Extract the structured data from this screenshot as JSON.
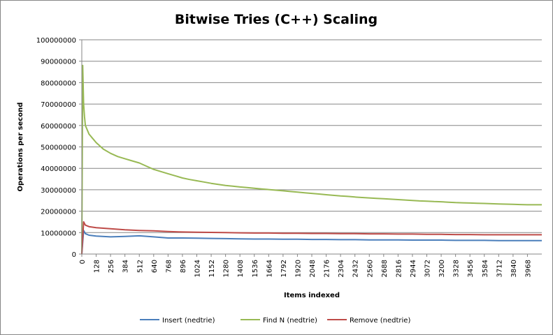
{
  "chart_data": {
    "type": "line",
    "title": "Bitwise Tries (C++) Scaling",
    "xlabel": "Items indexed",
    "ylabel": "Operations per second",
    "ylim": [
      0,
      100000000
    ],
    "yticks": [
      "0",
      "10000000",
      "20000000",
      "30000000",
      "40000000",
      "50000000",
      "60000000",
      "70000000",
      "80000000",
      "90000000",
      "100000000"
    ],
    "xlim": [
      0,
      4096
    ],
    "xticks": [
      "0",
      "128",
      "256",
      "384",
      "512",
      "640",
      "768",
      "896",
      "1024",
      "1152",
      "1280",
      "1408",
      "1536",
      "1664",
      "1792",
      "1920",
      "2048",
      "2176",
      "2304",
      "2432",
      "2560",
      "2688",
      "2816",
      "2944",
      "3072",
      "3200",
      "3328",
      "3456",
      "3584",
      "3712",
      "3840",
      "3968"
    ],
    "grid": true,
    "legend_position": "bottom",
    "series": [
      {
        "name": "Insert (nedtrie)",
        "color": "#4a7ebb",
        "x": [
          0,
          16,
          32,
          64,
          128,
          256,
          384,
          512,
          640,
          768,
          896,
          1024,
          1152,
          1280,
          1408,
          1536,
          1664,
          1792,
          1920,
          2048,
          2176,
          2304,
          2432,
          2560,
          2688,
          2816,
          2944,
          3072,
          3200,
          3328,
          3456,
          3584,
          3712,
          3840,
          3968,
          4096
        ],
        "values": [
          0,
          11000000,
          9500000,
          8800000,
          8400000,
          8000000,
          8200000,
          8500000,
          8000000,
          7500000,
          7500000,
          7400000,
          7300000,
          7200000,
          7100000,
          7000000,
          7000000,
          6900000,
          6900000,
          6800000,
          6800000,
          6700000,
          6700000,
          6600000,
          6600000,
          6600000,
          6500000,
          6500000,
          6500000,
          6400000,
          6400000,
          6400000,
          6300000,
          6300000,
          6300000,
          6300000
        ]
      },
      {
        "name": "Find N (nedtrie)",
        "color": "#98b954",
        "x": [
          0,
          8,
          16,
          24,
          32,
          48,
          64,
          96,
          128,
          192,
          256,
          320,
          384,
          448,
          512,
          576,
          640,
          704,
          768,
          832,
          896,
          960,
          1024,
          1088,
          1152,
          1216,
          1280,
          1344,
          1408,
          1472,
          1536,
          1600,
          1664,
          1728,
          1792,
          1856,
          1920,
          1984,
          2048,
          2112,
          2176,
          2240,
          2304,
          2368,
          2432,
          2496,
          2560,
          2624,
          2688,
          2752,
          2816,
          2880,
          2944,
          3008,
          3072,
          3136,
          3200,
          3264,
          3328,
          3392,
          3456,
          3520,
          3584,
          3648,
          3712,
          3776,
          3840,
          3904,
          3968,
          4032,
          4096
        ],
        "values": [
          0,
          88000000,
          70000000,
          64000000,
          60000000,
          58000000,
          56000000,
          54000000,
          52000000,
          49000000,
          47000000,
          45500000,
          44500000,
          43500000,
          42500000,
          41000000,
          39500000,
          38500000,
          37500000,
          36500000,
          35500000,
          34800000,
          34200000,
          33600000,
          33000000,
          32500000,
          32000000,
          31700000,
          31300000,
          31000000,
          30700000,
          30400000,
          30100000,
          29800000,
          29500000,
          29200000,
          28900000,
          28600000,
          28300000,
          28000000,
          27700000,
          27400000,
          27100000,
          26900000,
          26600000,
          26400000,
          26200000,
          26000000,
          25800000,
          25600000,
          25400000,
          25200000,
          25000000,
          24800000,
          24700000,
          24500000,
          24400000,
          24200000,
          24000000,
          23900000,
          23800000,
          23700000,
          23600000,
          23500000,
          23400000,
          23300000,
          23200000,
          23100000,
          23000000,
          23000000,
          23000000
        ]
      },
      {
        "name": "Remove (nedtrie)",
        "color": "#be4b48",
        "x": [
          0,
          16,
          32,
          64,
          128,
          256,
          384,
          512,
          640,
          768,
          896,
          1024,
          1152,
          1280,
          1408,
          1536,
          1664,
          1792,
          1920,
          2048,
          2176,
          2304,
          2432,
          2560,
          2688,
          2816,
          2944,
          3072,
          3200,
          3328,
          3456,
          3584,
          3712,
          3840,
          3968,
          4096
        ],
        "values": [
          0,
          15000000,
          13500000,
          12800000,
          12300000,
          11800000,
          11300000,
          11000000,
          10800000,
          10500000,
          10300000,
          10200000,
          10100000,
          10000000,
          9900000,
          9800000,
          9800000,
          9700000,
          9700000,
          9600000,
          9600000,
          9500000,
          9500000,
          9400000,
          9400000,
          9300000,
          9300000,
          9200000,
          9200000,
          9100000,
          9100000,
          9000000,
          9000000,
          9000000,
          9000000,
          9000000
        ]
      }
    ]
  }
}
